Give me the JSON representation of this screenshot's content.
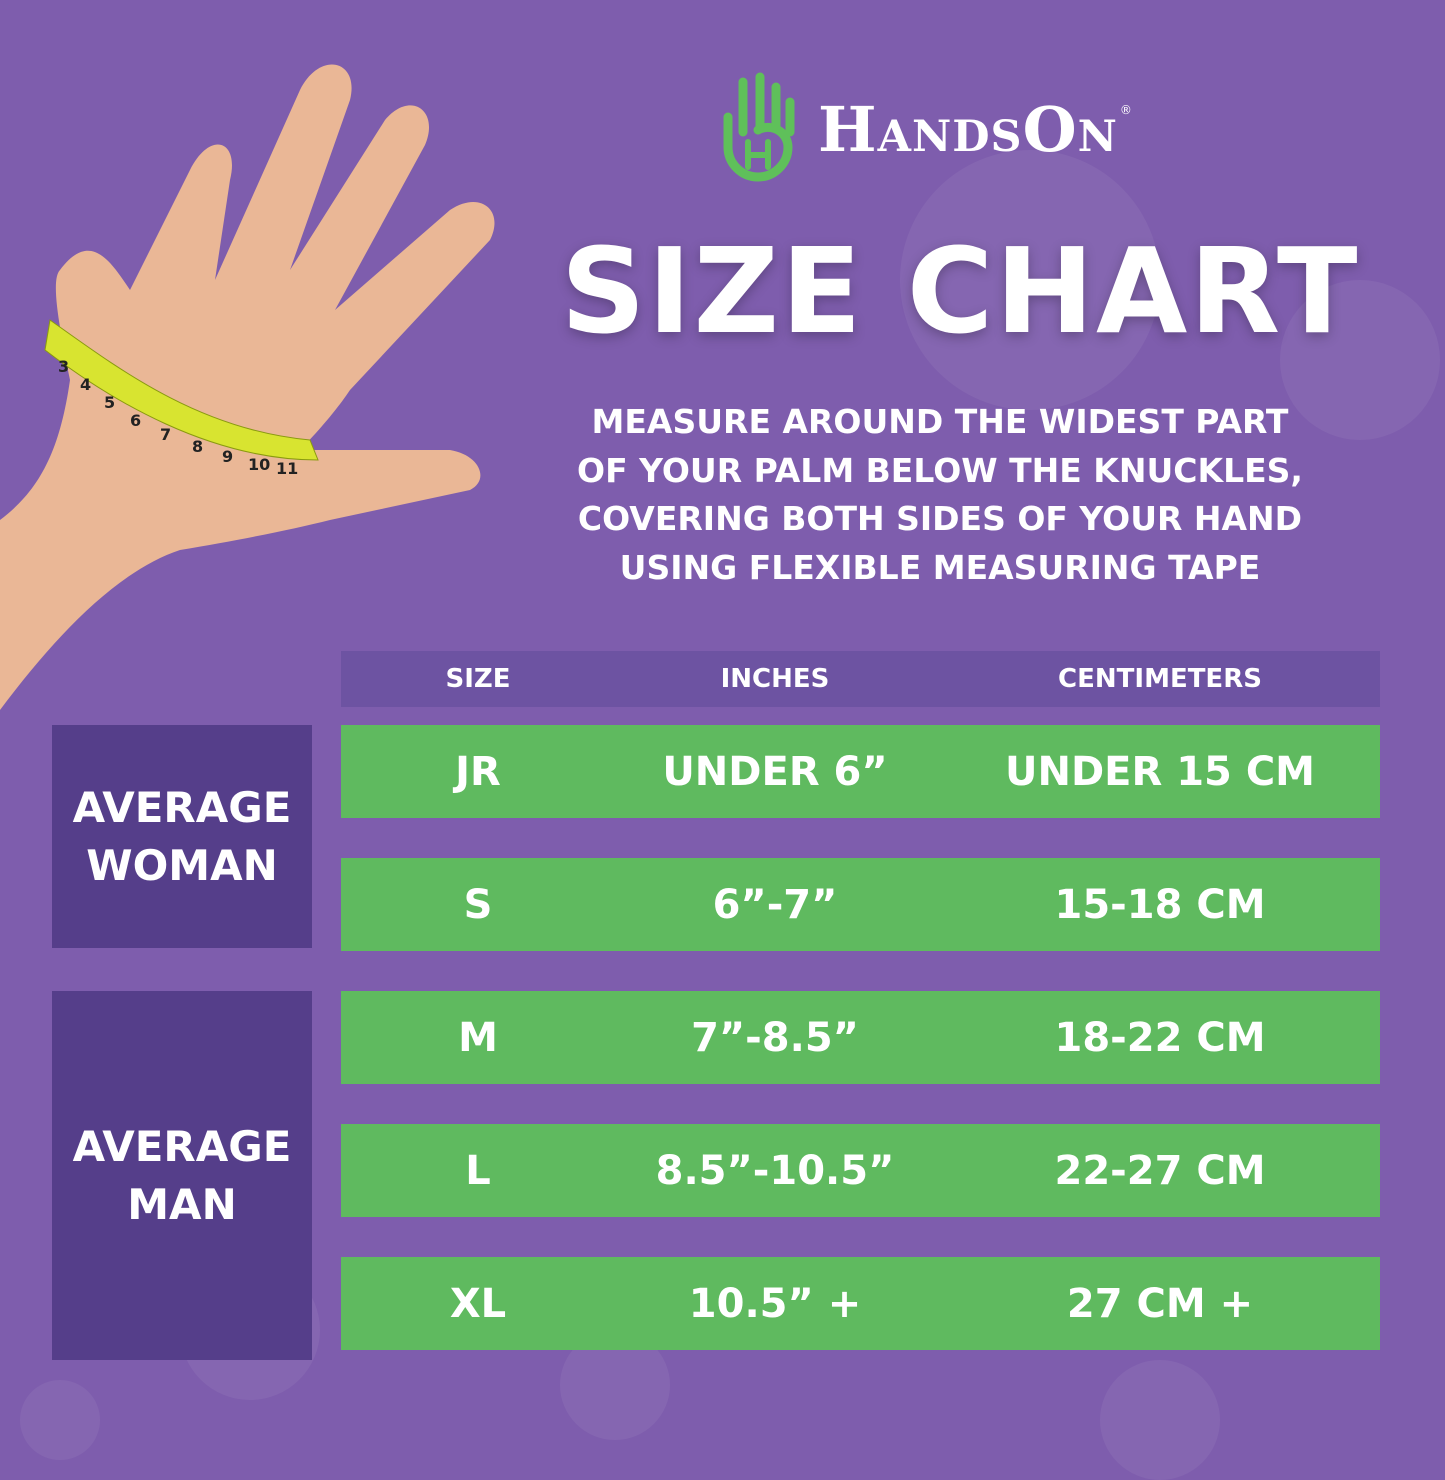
{
  "brand": {
    "name": "HandsOn",
    "registered": "®"
  },
  "title": "SIZE CHART",
  "instructions": [
    "MEASURE AROUND THE WIDEST PART",
    "OF YOUR PALM BELOW THE KNUCKLES,",
    "COVERING BOTH SIDES OF YOUR HAND",
    "USING FLEXIBLE MEASURING TAPE"
  ],
  "colors": {
    "background": "#7e5dad",
    "row": "#5fba5f",
    "header": "#6d53a2",
    "category": "#553e8a",
    "logo": "#5fc05a"
  },
  "table": {
    "headers": [
      "SIZE",
      "INCHES",
      "CENTIMETERS"
    ],
    "rows": [
      {
        "size": "JR",
        "inches": "UNDER 6”",
        "cm": "UNDER 15 CM"
      },
      {
        "size": "S",
        "inches": "6”-7”",
        "cm": "15-18 CM"
      },
      {
        "size": "M",
        "inches": "7”-8.5”",
        "cm": "18-22 CM"
      },
      {
        "size": "L",
        "inches": "8.5”-10.5”",
        "cm": "22-27 CM"
      },
      {
        "size": "XL",
        "inches": "10.5” +",
        "cm": "27 CM +"
      }
    ],
    "categories": [
      {
        "line1": "AVERAGE",
        "line2": "WOMAN"
      },
      {
        "line1": "AVERAGE",
        "line2": "MAN"
      }
    ]
  },
  "tape_numbers": [
    "3",
    "4",
    "5",
    "6",
    "7",
    "8",
    "9",
    "10",
    "11"
  ]
}
